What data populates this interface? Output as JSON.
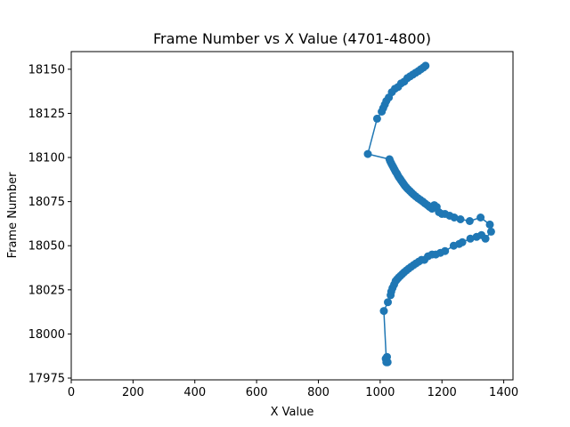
{
  "chart_data": {
    "type": "line",
    "title": "Frame Number vs X Value (4701-4800)",
    "xlabel": "X Value",
    "ylabel": "Frame Number",
    "xlim": [
      0,
      1430
    ],
    "ylim": [
      17974,
      18160
    ],
    "xticks": [
      0,
      200,
      400,
      600,
      800,
      1000,
      1200,
      1400
    ],
    "yticks": [
      17975,
      18000,
      18025,
      18050,
      18075,
      18100,
      18125,
      18150
    ],
    "xtick_labels": [
      "0",
      "200",
      "400",
      "600",
      "800",
      "1000",
      "1200",
      "1400"
    ],
    "ytick_labels": [
      "17975",
      "18000",
      "18025",
      "18050",
      "18075",
      "18100",
      "18125",
      "18150"
    ],
    "grid": false,
    "marker": "circle",
    "color": "#1f77b4",
    "series": [
      {
        "x": [
          1020,
          1018,
          1022,
          1024,
          1020,
          1012,
          1025,
          1034,
          1036,
          1040,
          1045,
          1050,
          1055,
          1060,
          1066,
          1072,
          1078,
          1085,
          1092,
          1100,
          1108,
          1116,
          1125,
          1134,
          1143,
          1155,
          1168,
          1180,
          1195,
          1210,
          1238,
          1256,
          1266,
          1292,
          1312,
          1328,
          1341,
          1359,
          1355,
          1325,
          1290,
          1260,
          1240,
          1225,
          1210,
          1200,
          1190,
          1183,
          1175,
          1168,
          1160,
          1153,
          1145,
          1138,
          1130,
          1122,
          1115,
          1108,
          1102,
          1096,
          1090,
          1085,
          1080,
          1076,
          1072,
          1068,
          1064,
          1060,
          1057,
          1054,
          1050,
          1047,
          1044,
          1041,
          1038,
          1035,
          1032,
          1030,
          960,
          990,
          1005,
          1010,
          1015,
          1020,
          1028,
          1038,
          1048,
          1058,
          1068,
          1078,
          1088,
          1097,
          1106,
          1115,
          1124,
          1132,
          1140,
          1147
        ],
        "y": [
          17984,
          17986,
          17987,
          17984,
          17985,
          18013,
          18018,
          18022,
          18024,
          18026,
          18028,
          18030,
          18031,
          18032,
          18033,
          18034,
          18035,
          18036,
          18037,
          18038,
          18039,
          18040,
          18041,
          18042,
          18042,
          18044,
          18045,
          18045,
          18046,
          18047,
          18050,
          18051,
          18052,
          18054,
          18055,
          18056,
          18054,
          18058,
          18062,
          18066,
          18064,
          18065,
          18066,
          18067,
          18068,
          18068,
          18069,
          18072,
          18073,
          18071,
          18072,
          18073,
          18074,
          18075,
          18076,
          18077,
          18078,
          18079,
          18080,
          18081,
          18082,
          18083,
          18084,
          18085,
          18086,
          18087,
          18088,
          18089,
          18090,
          18091,
          18092,
          18093,
          18094,
          18095,
          18096,
          18097,
          18098,
          18099,
          18102,
          18122,
          18126,
          18128,
          18130,
          18132,
          18134,
          18137,
          18139,
          18140,
          18142,
          18143,
          18145,
          18146,
          18147,
          18148,
          18149,
          18150,
          18151,
          18152
        ]
      }
    ]
  }
}
